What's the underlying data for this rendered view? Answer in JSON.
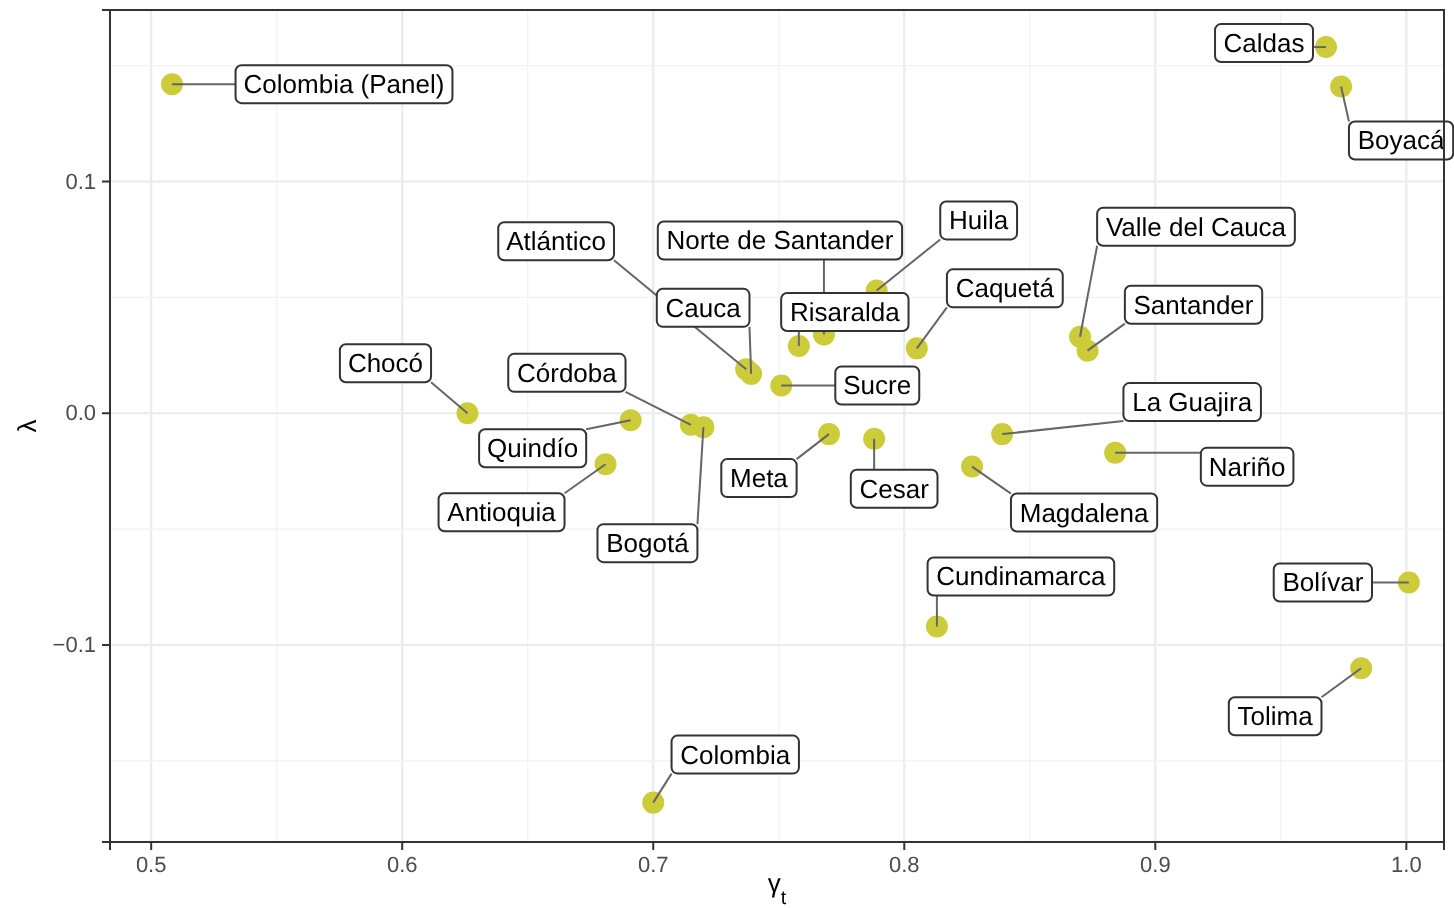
{
  "chart_data": {
    "type": "scatter",
    "xlabel": "γ$_{t}$",
    "ylabel": "λ",
    "xlim": [
      0.4836,
      1.015
    ],
    "ylim": [
      -0.185,
      0.174
    ],
    "xticks": [
      {
        "value": 0.5,
        "label": "0.5"
      },
      0.6,
      0.7,
      0.8,
      0.9,
      {
        "value": 1.0,
        "label": "1.0"
      }
    ],
    "yticks": [
      -0.1,
      {
        "value": 0.0,
        "label": "0.0"
      },
      0.1
    ],
    "grid": true,
    "marker": "circle",
    "series": [
      {
        "color": "#cccc3a",
        "x": [
          0.5083,
          0.968,
          0.974,
          0.737,
          0.739,
          0.768,
          0.758,
          0.789,
          0.805,
          0.751,
          0.626,
          0.715,
          0.72,
          0.691,
          0.681,
          0.77,
          0.788,
          0.839,
          0.827,
          0.87,
          0.873,
          0.884,
          0.813,
          1.001,
          0.982,
          0.7
        ],
        "values": [
          0.142,
          0.158,
          0.141,
          0.019,
          0.017,
          0.034,
          0.029,
          0.053,
          0.028,
          0.012,
          0.0,
          -0.005,
          -0.006,
          -0.003,
          -0.022,
          -0.009,
          -0.011,
          -0.009,
          -0.023,
          0.033,
          0.027,
          -0.017,
          -0.092,
          -0.073,
          -0.11,
          -0.168
        ]
      }
    ],
    "annotations": [
      {
        "text": "Colombia (Panel)",
        "x": 0.5083,
        "y": 0.142
      },
      {
        "text": "Caldas",
        "x": 0.968,
        "y": 0.158
      },
      {
        "text": "Boyacá",
        "x": 0.974,
        "y": 0.141
      },
      {
        "text": "Atlántico",
        "x": 0.737,
        "y": 0.019
      },
      {
        "text": "Cauca",
        "x": 0.739,
        "y": 0.017
      },
      {
        "text": "Norte de Santander",
        "x": 0.768,
        "y": 0.034
      },
      {
        "text": "Risaralda",
        "x": 0.758,
        "y": 0.029
      },
      {
        "text": "Huila",
        "x": 0.789,
        "y": 0.053
      },
      {
        "text": "Caquetá",
        "x": 0.805,
        "y": 0.028
      },
      {
        "text": "Sucre",
        "x": 0.751,
        "y": 0.012
      },
      {
        "text": "Chocó",
        "x": 0.626,
        "y": 0.0
      },
      {
        "text": "Córdoba",
        "x": 0.715,
        "y": -0.005
      },
      {
        "text": "Bogotá",
        "x": 0.72,
        "y": -0.006
      },
      {
        "text": "Quindío",
        "x": 0.691,
        "y": -0.003
      },
      {
        "text": "Antioquia",
        "x": 0.681,
        "y": -0.022
      },
      {
        "text": "Meta",
        "x": 0.77,
        "y": -0.009
      },
      {
        "text": "Cesar",
        "x": 0.788,
        "y": -0.011
      },
      {
        "text": "La Guajira",
        "x": 0.839,
        "y": -0.009
      },
      {
        "text": "Magdalena",
        "x": 0.827,
        "y": -0.023
      },
      {
        "text": "Valle del Cauca",
        "x": 0.87,
        "y": 0.033
      },
      {
        "text": "Santander",
        "x": 0.873,
        "y": 0.027
      },
      {
        "text": "Nariño",
        "x": 0.884,
        "y": -0.017
      },
      {
        "text": "Cundinamarca",
        "x": 0.813,
        "y": -0.092
      },
      {
        "text": "Bolívar",
        "x": 1.001,
        "y": -0.073
      },
      {
        "text": "Tolima",
        "x": 0.982,
        "y": -0.11
      },
      {
        "text": "Colombia",
        "x": 0.7,
        "y": -0.168
      }
    ]
  }
}
